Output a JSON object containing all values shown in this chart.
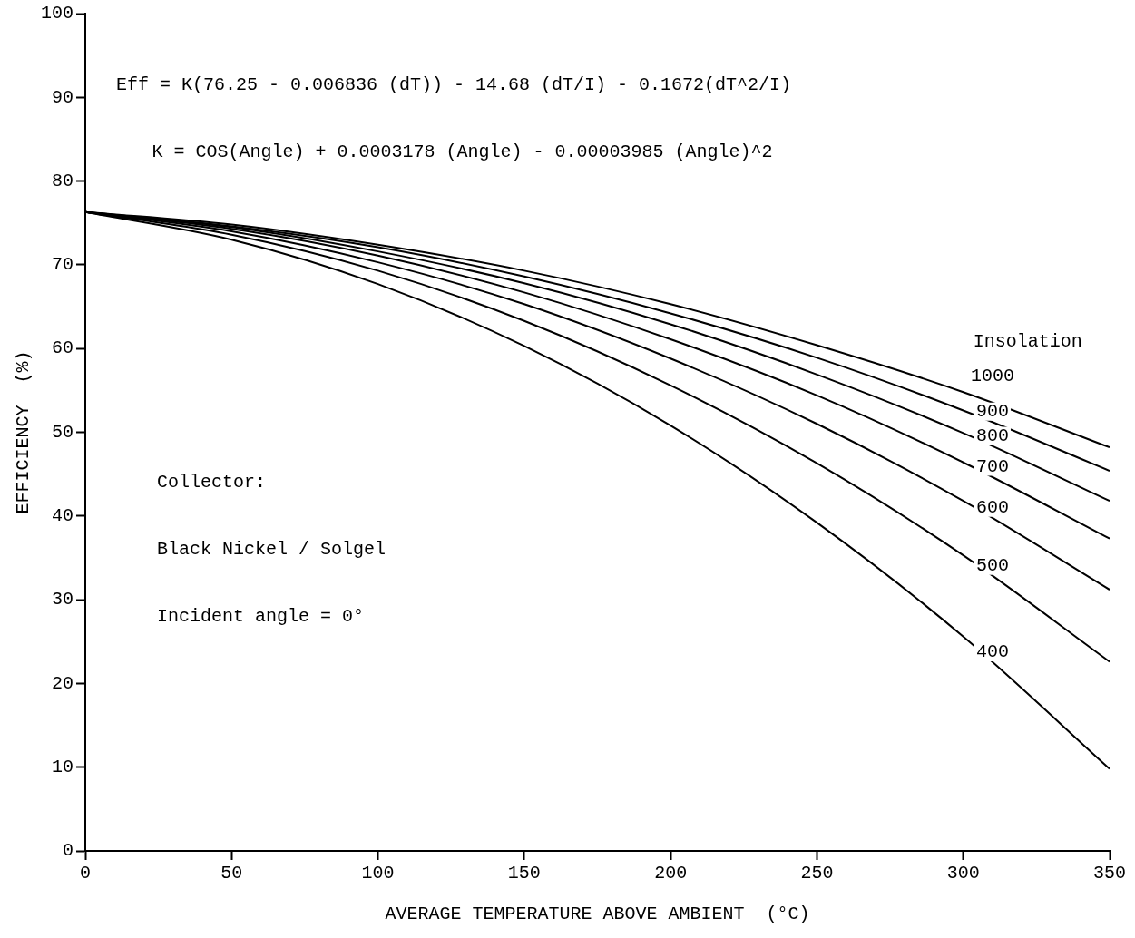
{
  "chart_data": {
    "type": "line",
    "xlabel": "AVERAGE TEMPERATURE ABOVE AMBIENT  (°C)",
    "ylabel": "EFFICIENCY  (%)",
    "legend_title": "Insolation",
    "x": [
      0,
      50,
      100,
      150,
      200,
      250,
      300,
      350
    ],
    "series": [
      {
        "name": "1000",
        "color": "#000000",
        "values": [
          76.3,
          74.8,
          72.4,
          69.3,
          65.3,
          60.4,
          54.8,
          48.2
        ]
      },
      {
        "name": "900",
        "color": "#000000",
        "values": [
          76.3,
          74.6,
          72.1,
          68.6,
          64.2,
          58.9,
          52.6,
          45.4
        ]
      },
      {
        "name": "800",
        "color": "#000000",
        "values": [
          76.3,
          74.5,
          71.6,
          67.8,
          62.9,
          56.9,
          49.9,
          41.8
        ]
      },
      {
        "name": "700",
        "color": "#000000",
        "values": [
          76.3,
          74.3,
          71.1,
          66.7,
          61.1,
          54.4,
          46.4,
          37.3
        ]
      },
      {
        "name": "600",
        "color": "#000000",
        "values": [
          76.3,
          74.0,
          70.3,
          65.3,
          58.8,
          51.0,
          41.8,
          31.2
        ]
      },
      {
        "name": "500",
        "color": "#000000",
        "values": [
          76.3,
          73.6,
          69.3,
          63.3,
          55.6,
          46.3,
          35.3,
          22.6
        ]
      },
      {
        "name": "400",
        "color": "#000000",
        "values": [
          76.3,
          73.0,
          67.7,
          60.3,
          50.8,
          39.2,
          25.6,
          9.8
        ]
      }
    ],
    "xlim": [
      0,
      350
    ],
    "xticks": [
      0,
      50,
      100,
      150,
      200,
      250,
      300,
      350
    ],
    "ylim": [
      0,
      100
    ],
    "yticks": [
      0,
      10,
      20,
      30,
      40,
      50,
      60,
      70,
      80,
      90,
      100
    ],
    "grid": false,
    "legend": false,
    "marker": "none",
    "line_style": "solid",
    "annotations": [
      "Eff = K(76.25 - 0.006836 (dT)) - 14.68 (dT/I) - 0.1672(dT^2/I)",
      "K = COS(Angle) + 0.0003178 (Angle) - 0.00003985 (Angle)^2",
      "Collector:",
      "Black Nickel / Solgel",
      "Incident angle = 0°"
    ]
  }
}
